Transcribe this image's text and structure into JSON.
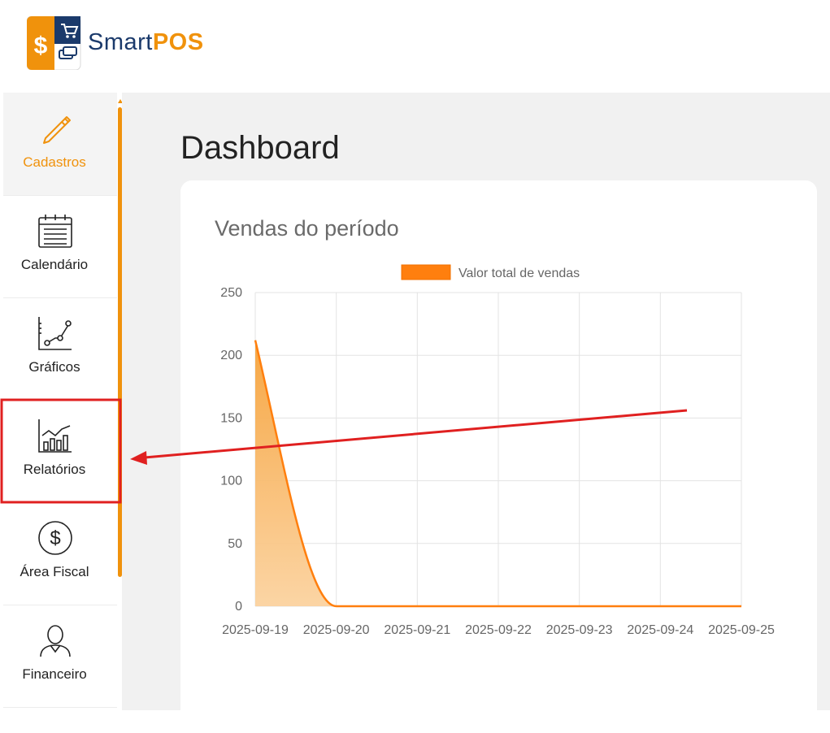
{
  "brand": {
    "name_part1": "Smart",
    "name_part2": "POS"
  },
  "sidebar": {
    "items": [
      {
        "label": "Cadastros",
        "icon": "pencil-icon",
        "active": true
      },
      {
        "label": "Calendário",
        "icon": "calendar-icon"
      },
      {
        "label": "Gráficos",
        "icon": "line-chart-icon"
      },
      {
        "label": "Relatórios",
        "icon": "bar-chart-icon"
      },
      {
        "label": "Área Fiscal",
        "icon": "dollar-circle-icon"
      },
      {
        "label": "Financeiro",
        "icon": "person-icon"
      }
    ]
  },
  "main": {
    "title": "Dashboard",
    "card_title": "Vendas do período"
  },
  "colors": {
    "accent": "#f0920c",
    "annotation": "#e02020",
    "series": "#ff7f0e"
  },
  "chart_data": {
    "type": "area",
    "x": [
      "2025-09-19",
      "2025-09-20",
      "2025-09-21",
      "2025-09-22",
      "2025-09-23",
      "2025-09-24",
      "2025-09-25"
    ],
    "series": [
      {
        "name": "Valor total de vendas",
        "values": [
          212,
          0,
          0,
          0,
          0,
          0,
          0
        ]
      }
    ],
    "yticks": [
      "0",
      "50",
      "100",
      "150",
      "200",
      "250"
    ],
    "ylim": [
      0,
      250
    ],
    "grid": true,
    "legend": "top"
  }
}
